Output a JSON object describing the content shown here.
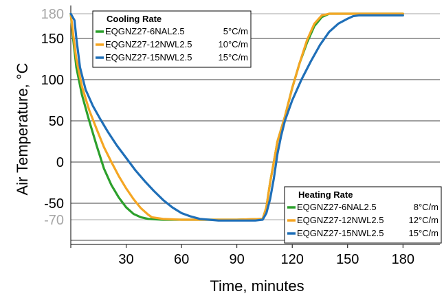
{
  "chart_data": {
    "type": "line",
    "xlabel": "Time, minutes",
    "ylabel": "Air Temperature, °C",
    "xlim": [
      0,
      200
    ],
    "ylim": [
      -100,
      190
    ],
    "x_ticks": [
      30,
      60,
      90,
      120,
      150,
      180
    ],
    "y_ticks": [
      {
        "value": 180,
        "label": "180",
        "highlight": true
      },
      {
        "value": 150,
        "label": "150",
        "highlight": false
      },
      {
        "value": 100,
        "label": "100",
        "highlight": false
      },
      {
        "value": 50,
        "label": "50",
        "highlight": false
      },
      {
        "value": 0,
        "label": "0",
        "highlight": false
      },
      {
        "value": -50,
        "label": "-50",
        "highlight": false
      },
      {
        "value": -70,
        "label": "-70",
        "highlight": true
      }
    ],
    "grid": true,
    "series": [
      {
        "name": "EQGNZ27-6NAL2.5",
        "color": "#2ca02c",
        "x": [
          0,
          1,
          3,
          6,
          10,
          14,
          18,
          22,
          26,
          30,
          34,
          38,
          42,
          50,
          60,
          75,
          90,
          104,
          106,
          108,
          110,
          112,
          116,
          120,
          124,
          128,
          132,
          136,
          140,
          150,
          165,
          180
        ],
        "y": [
          180,
          155,
          115,
          82,
          50,
          20,
          -8,
          -28,
          -43,
          -55,
          -63,
          -67,
          -69,
          -70,
          -70,
          -70,
          -70,
          -69,
          -55,
          -25,
          0,
          25,
          55,
          90,
          120,
          145,
          165,
          176,
          180,
          180,
          180,
          180
        ]
      },
      {
        "name": "EQGNZ27-12NWL2.5",
        "color": "#f5a623",
        "x": [
          0,
          1,
          3,
          6,
          10,
          14,
          18,
          22,
          26,
          30,
          34,
          38,
          42,
          44,
          50,
          60,
          75,
          90,
          104,
          106,
          108,
          110,
          112,
          116,
          120,
          124,
          128,
          132,
          136,
          140,
          150,
          165,
          180
        ],
        "y": [
          180,
          160,
          125,
          92,
          63,
          40,
          18,
          0,
          -17,
          -32,
          -45,
          -56,
          -64,
          -67,
          -69,
          -70,
          -70,
          -70,
          -69,
          -55,
          -25,
          0,
          25,
          55,
          90,
          120,
          148,
          168,
          178,
          180,
          180,
          180,
          180
        ]
      },
      {
        "name": "EQGNZ27-15NWL2.5",
        "color": "#1f6fb8",
        "x": [
          0,
          2,
          3,
          5,
          8,
          12,
          16,
          20,
          25,
          30,
          35,
          40,
          45,
          50,
          55,
          60,
          65,
          70,
          75,
          80,
          90,
          100,
          104,
          106,
          108,
          110,
          112,
          114,
          116,
          120,
          125,
          130,
          135,
          140,
          145,
          150,
          153,
          156,
          160,
          170,
          180
        ],
        "y": [
          180,
          172,
          150,
          115,
          88,
          68,
          52,
          37,
          20,
          5,
          -10,
          -23,
          -35,
          -46,
          -55,
          -62,
          -66,
          -69,
          -70,
          -71,
          -71,
          -71,
          -70,
          -62,
          -45,
          -20,
          10,
          32,
          50,
          75,
          100,
          122,
          142,
          158,
          168,
          174,
          177,
          178,
          178,
          178,
          178
        ]
      }
    ],
    "legends": [
      {
        "title": "Cooling Rate",
        "placement": "top-left",
        "entries": [
          {
            "name": "EQGNZ27-6NAL2.5",
            "rate": "5°C/m",
            "color": "#2ca02c"
          },
          {
            "name": "EQGNZ27-12NWL2.5",
            "rate": "10°C/m",
            "color": "#f5a623"
          },
          {
            "name": "EQGNZ27-15NWL2.5",
            "rate": "15°C/m",
            "color": "#1f6fb8"
          }
        ]
      },
      {
        "title": "Heating Rate",
        "placement": "bottom-right",
        "entries": [
          {
            "name": "EQGNZ27-6NAL2.5",
            "rate": "8°C/m",
            "color": "#2ca02c"
          },
          {
            "name": "EQGNZ27-12NWL2.5",
            "rate": "12°C/m",
            "color": "#f5a623"
          },
          {
            "name": "EQGNZ27-15NWL2.5",
            "rate": "15°C/m",
            "color": "#1f6fb8"
          }
        ]
      }
    ]
  }
}
